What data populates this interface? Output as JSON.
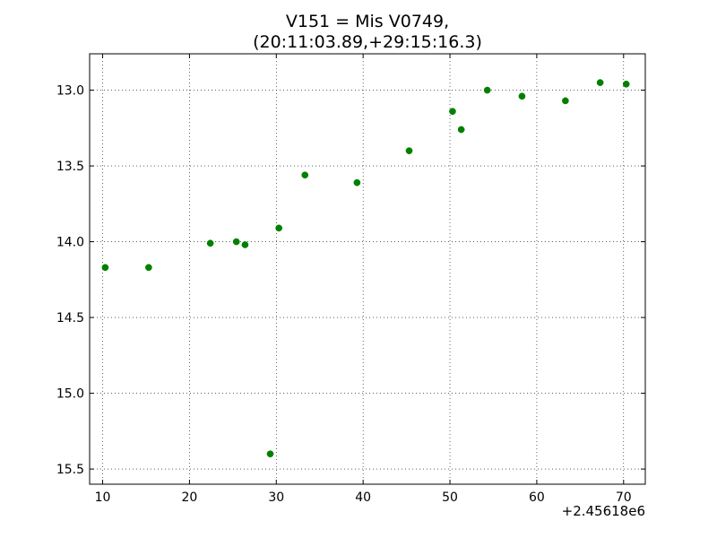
{
  "chart_data": {
    "type": "scatter",
    "title_line1": "V151 = Mis V0749,",
    "title_line2": "(20:11:03.89,+29:15:16.3)",
    "xlabel": "",
    "ylabel": "",
    "x_offset_label": "+2.45618e6",
    "xlim": [
      8.5,
      72.5
    ],
    "ylim": [
      15.6,
      12.76
    ],
    "y_inverted": true,
    "grid": true,
    "marker_color": "#008000",
    "x_ticks": [
      10,
      20,
      30,
      40,
      50,
      60,
      70
    ],
    "x_tick_labels": [
      "10",
      "20",
      "30",
      "40",
      "50",
      "60",
      "70"
    ],
    "y_ticks": [
      13.0,
      13.5,
      14.0,
      14.5,
      15.0,
      15.5
    ],
    "y_tick_labels": [
      "13.0",
      "13.5",
      "14.0",
      "14.5",
      "15.0",
      "15.5"
    ],
    "series": [
      {
        "points": [
          {
            "x": 10.3,
            "y": 14.17
          },
          {
            "x": 15.3,
            "y": 14.17
          },
          {
            "x": 22.4,
            "y": 14.01
          },
          {
            "x": 25.4,
            "y": 14.0
          },
          {
            "x": 26.4,
            "y": 14.02
          },
          {
            "x": 29.3,
            "y": 15.4
          },
          {
            "x": 30.3,
            "y": 13.91
          },
          {
            "x": 33.3,
            "y": 13.56
          },
          {
            "x": 39.3,
            "y": 13.61
          },
          {
            "x": 45.3,
            "y": 13.4
          },
          {
            "x": 50.3,
            "y": 13.14
          },
          {
            "x": 51.3,
            "y": 13.26
          },
          {
            "x": 54.3,
            "y": 13.0
          },
          {
            "x": 58.3,
            "y": 13.04
          },
          {
            "x": 63.3,
            "y": 13.07
          },
          {
            "x": 67.3,
            "y": 12.95
          },
          {
            "x": 70.3,
            "y": 12.96
          }
        ]
      }
    ]
  }
}
